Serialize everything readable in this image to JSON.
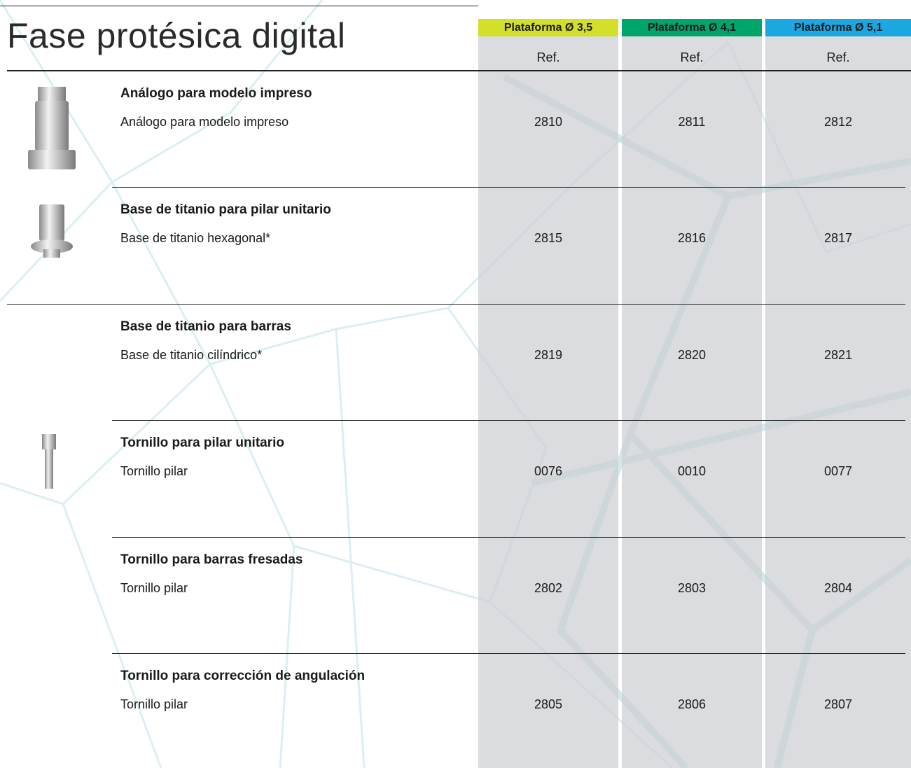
{
  "header": {
    "title": "Fase protésica digital"
  },
  "columns": [
    {
      "label": "Plataforma Ø 3,5",
      "sub": "Ref.",
      "color": "#d3df28"
    },
    {
      "label": "Plataforma Ø 4,1",
      "sub": "Ref.",
      "color": "#00a56c"
    },
    {
      "label": "Plataforma Ø 5,1",
      "sub": "Ref.",
      "color": "#1ba7df"
    }
  ],
  "rows": [
    {
      "title": "Análogo para modelo impreso",
      "description": "Análogo para modelo impreso",
      "refs": [
        "2810",
        "2811",
        "2812"
      ]
    },
    {
      "title": "Base de titanio para pilar unitario",
      "description": "Base de titanio hexagonal*",
      "refs": [
        "2815",
        "2816",
        "2817"
      ]
    },
    {
      "title": "Base de titanio para barras",
      "description": "Base de titanio cilíndrico*",
      "refs": [
        "2819",
        "2820",
        "2821"
      ]
    },
    {
      "title": "Tornillo para pilar unitario",
      "description": "Tornillo pilar",
      "refs": [
        "0076",
        "0010",
        "0077"
      ]
    },
    {
      "title": "Tornillo para barras fresadas",
      "description": "Tornillo pilar",
      "refs": [
        "2802",
        "2803",
        "2804"
      ]
    },
    {
      "title": "Tornillo para corrección de angulación",
      "description": "Tornillo pilar",
      "refs": [
        "2805",
        "2806",
        "2807"
      ]
    }
  ]
}
